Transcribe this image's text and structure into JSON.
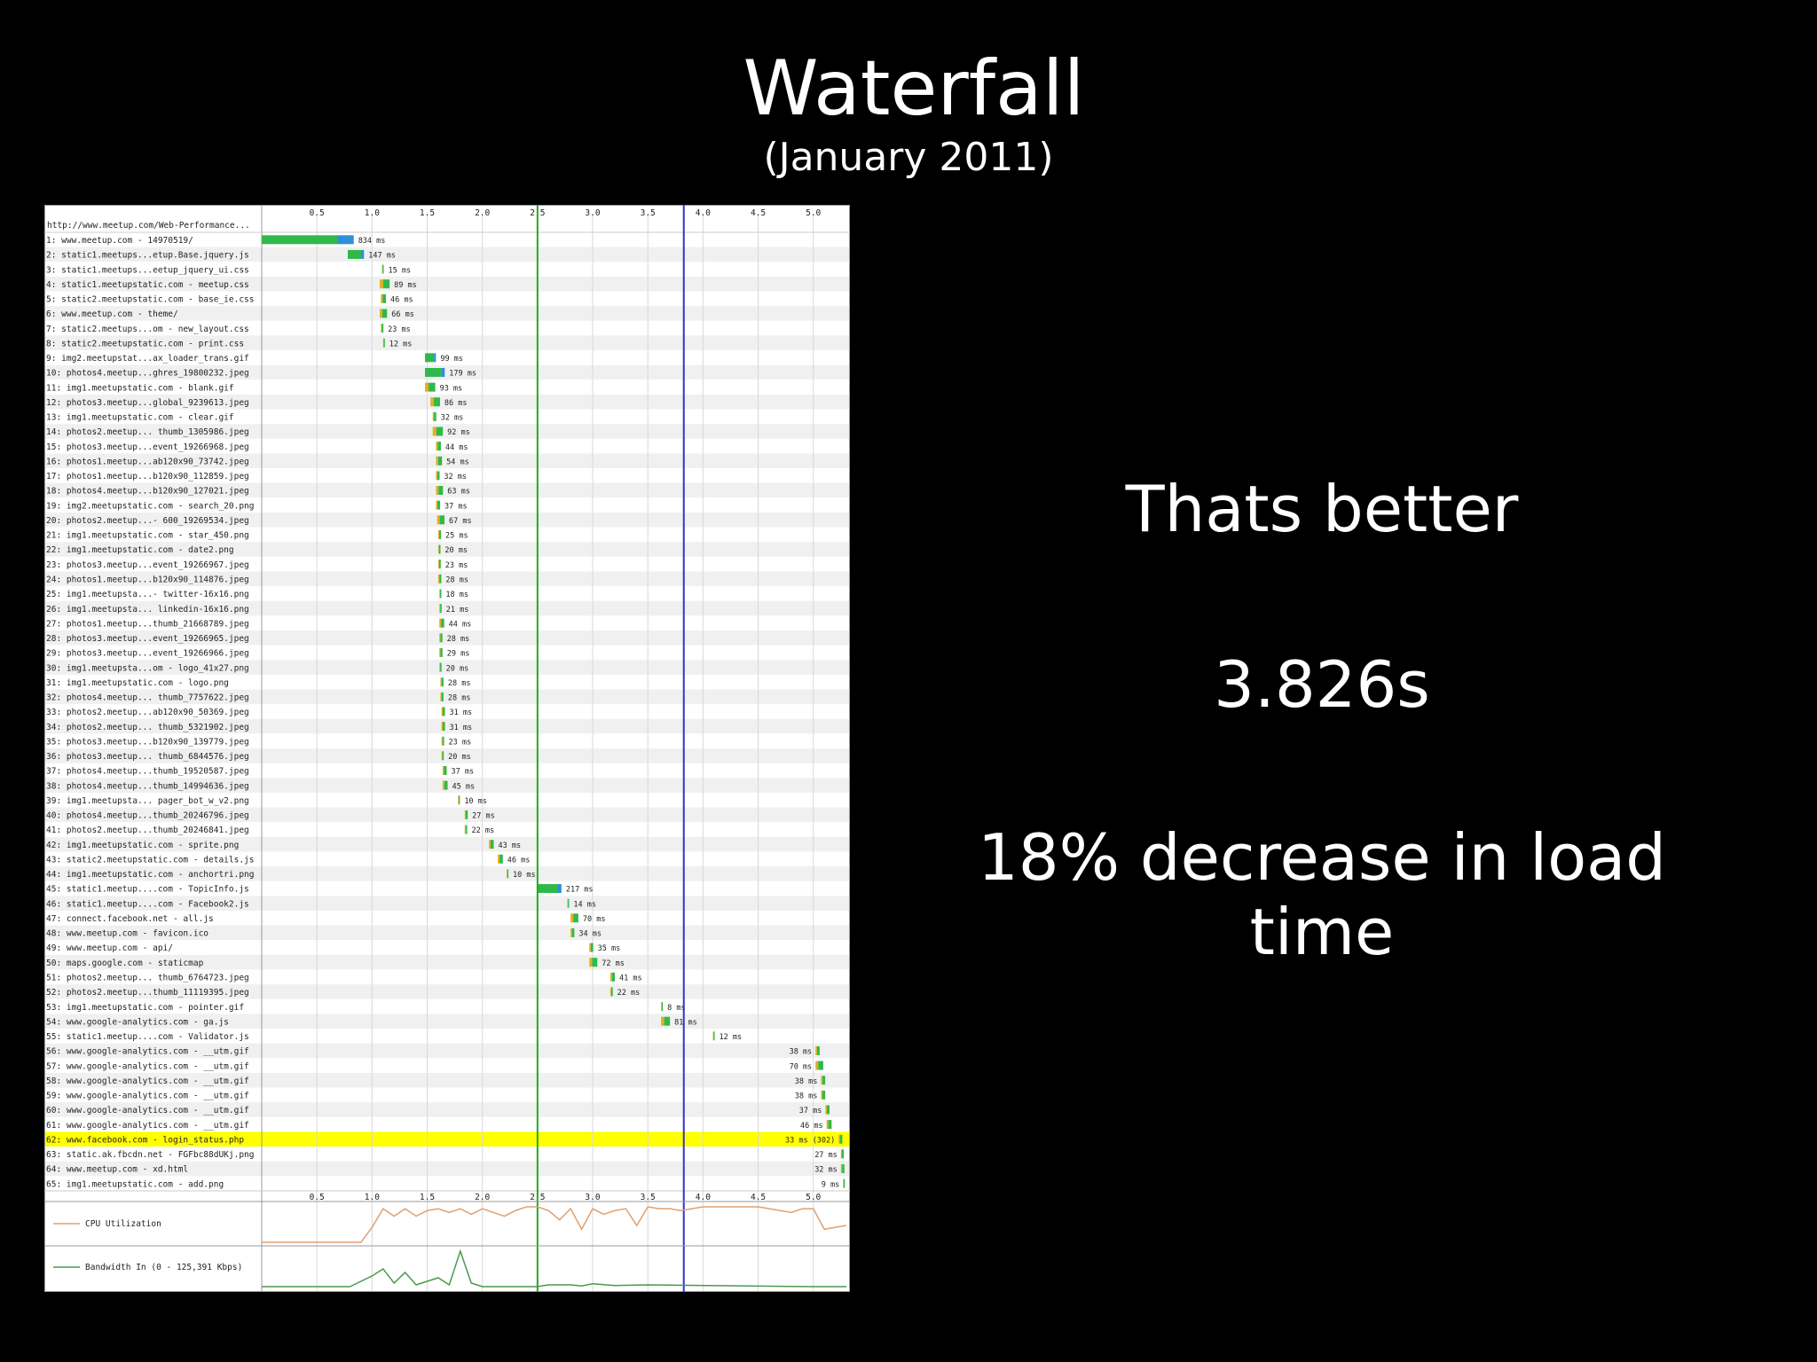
{
  "slide": {
    "title": "Waterfall",
    "subtitle": "(January 2011)",
    "notes": [
      "Thats better",
      "3.826s",
      "18% decrease in load time"
    ]
  },
  "colors": {
    "background": "#000000",
    "bar_primary": "#2fb94a",
    "bar_secondary": "#2f8fd8",
    "bar_tertiary": "#e0b020",
    "highlight_row": "#ffff00",
    "start_render_line": "#22aa22",
    "document_complete_line": "#3333cc",
    "cpu_line": "#e0a070",
    "bandwidth_line": "#4a9a4a"
  },
  "chart_data": {
    "type": "waterfall",
    "title": "http://www.meetup.com/Web-Performance...",
    "x_unit": "s",
    "xlim": [
      0,
      5.3
    ],
    "x_ticks": [
      "0.5",
      "1.0",
      "1.5",
      "2.0",
      "2.5",
      "3.0",
      "3.5",
      "4.0",
      "4.5",
      "5.0"
    ],
    "markers": [
      {
        "name": "start-render",
        "value": 2.5
      },
      {
        "name": "document-complete",
        "value": 3.826
      }
    ],
    "highlight_row": 62,
    "requests": [
      {
        "label": "1: www.meetup.com - 14970519/",
        "start": 0,
        "ms": 834,
        "dur_label": "834 ms"
      },
      {
        "label": "2: static1.meetups...etup.Base.jquery.js",
        "start": 0.78,
        "ms": 147,
        "dur_label": "147 ms"
      },
      {
        "label": "3: static1.meetups...eetup_jquery_ui.css",
        "start": 1.09,
        "ms": 15,
        "dur_label": "15 ms"
      },
      {
        "label": "4: static1.meetupstatic.com - meetup.css",
        "start": 1.07,
        "ms": 89,
        "dur_label": "89 ms"
      },
      {
        "label": "5: static2.meetupstatic.com - base_ie.css",
        "start": 1.08,
        "ms": 46,
        "dur_label": "46 ms"
      },
      {
        "label": "6: www.meetup.com - theme/",
        "start": 1.07,
        "ms": 66,
        "dur_label": "66 ms"
      },
      {
        "label": "7: static2.meetups...om - new_layout.css",
        "start": 1.08,
        "ms": 23,
        "dur_label": "23 ms"
      },
      {
        "label": "8: static2.meetupstatic.com - print.css",
        "start": 1.1,
        "ms": 12,
        "dur_label": "12 ms"
      },
      {
        "label": "9: img2.meetupstat...ax_loader_trans.gif",
        "start": 1.48,
        "ms": 99,
        "dur_label": "99 ms"
      },
      {
        "label": "10: photos4.meetup...ghres_19800232.jpeg",
        "start": 1.48,
        "ms": 179,
        "dur_label": "179 ms"
      },
      {
        "label": "11: img1.meetupstatic.com - blank.gif",
        "start": 1.48,
        "ms": 93,
        "dur_label": "93 ms"
      },
      {
        "label": "12: photos3.meetup...global_9239613.jpeg",
        "start": 1.53,
        "ms": 86,
        "dur_label": "86 ms"
      },
      {
        "label": "13: img1.meetupstatic.com - clear.gif",
        "start": 1.55,
        "ms": 32,
        "dur_label": "32 ms"
      },
      {
        "label": "14: photos2.meetup... thumb_1305986.jpeg",
        "start": 1.55,
        "ms": 92,
        "dur_label": "92 ms"
      },
      {
        "label": "15: photos3.meetup...event_19266968.jpeg",
        "start": 1.58,
        "ms": 44,
        "dur_label": "44 ms"
      },
      {
        "label": "16: photos1.meetup...ab120x90_73742.jpeg",
        "start": 1.58,
        "ms": 54,
        "dur_label": "54 ms"
      },
      {
        "label": "17: photos1.meetup...b120x90_112859.jpeg",
        "start": 1.58,
        "ms": 32,
        "dur_label": "32 ms"
      },
      {
        "label": "18: photos4.meetup...b120x90_127021.jpeg",
        "start": 1.58,
        "ms": 63,
        "dur_label": "63 ms"
      },
      {
        "label": "19: img2.meetupstatic.com - search_20.png",
        "start": 1.58,
        "ms": 37,
        "dur_label": "37 ms"
      },
      {
        "label": "20: photos2.meetup...- 600_19269534.jpeg",
        "start": 1.59,
        "ms": 67,
        "dur_label": "67 ms"
      },
      {
        "label": "21: img1.meetupstatic.com - star_450.png",
        "start": 1.6,
        "ms": 25,
        "dur_label": "25 ms"
      },
      {
        "label": "22: img1.meetupstatic.com - date2.png",
        "start": 1.6,
        "ms": 20,
        "dur_label": "20 ms"
      },
      {
        "label": "23: photos3.meetup...event_19266967.jpeg",
        "start": 1.6,
        "ms": 23,
        "dur_label": "23 ms"
      },
      {
        "label": "24: photos1.meetup...b120x90_114876.jpeg",
        "start": 1.6,
        "ms": 28,
        "dur_label": "28 ms"
      },
      {
        "label": "25: img1.meetupsta...- twitter-16x16.png",
        "start": 1.61,
        "ms": 18,
        "dur_label": "18 ms"
      },
      {
        "label": "26: img1.meetupsta... linkedin-16x16.png",
        "start": 1.61,
        "ms": 21,
        "dur_label": "21 ms"
      },
      {
        "label": "27: photos1.meetup...thumb_21668789.jpeg",
        "start": 1.61,
        "ms": 44,
        "dur_label": "44 ms"
      },
      {
        "label": "28: photos3.meetup...event_19266965.jpeg",
        "start": 1.61,
        "ms": 28,
        "dur_label": "28 ms"
      },
      {
        "label": "29: photos3.meetup...event_19266966.jpeg",
        "start": 1.61,
        "ms": 29,
        "dur_label": "29 ms"
      },
      {
        "label": "30: img1.meetupsta...om - logo_41x27.png",
        "start": 1.61,
        "ms": 20,
        "dur_label": "20 ms"
      },
      {
        "label": "31: img1.meetupstatic.com - logo.png",
        "start": 1.62,
        "ms": 28,
        "dur_label": "28 ms"
      },
      {
        "label": "32: photos4.meetup... thumb_7757622.jpeg",
        "start": 1.62,
        "ms": 28,
        "dur_label": "28 ms"
      },
      {
        "label": "33: photos2.meetup...ab120x90_50369.jpeg",
        "start": 1.63,
        "ms": 31,
        "dur_label": "31 ms"
      },
      {
        "label": "34: photos2.meetup... thumb_5321902.jpeg",
        "start": 1.63,
        "ms": 31,
        "dur_label": "31 ms"
      },
      {
        "label": "35: photos3.meetup...b120x90_139779.jpeg",
        "start": 1.63,
        "ms": 23,
        "dur_label": "23 ms"
      },
      {
        "label": "36: photos3.meetup... thumb_6844576.jpeg",
        "start": 1.63,
        "ms": 20,
        "dur_label": "20 ms"
      },
      {
        "label": "37: photos4.meetup...thumb_19520587.jpeg",
        "start": 1.64,
        "ms": 37,
        "dur_label": "37 ms"
      },
      {
        "label": "38: photos4.meetup...thumb_14994636.jpeg",
        "start": 1.64,
        "ms": 45,
        "dur_label": "45 ms"
      },
      {
        "label": "39: img1.meetupsta... pager_bot_w_v2.png",
        "start": 1.78,
        "ms": 10,
        "dur_label": "10 ms"
      },
      {
        "label": "40: photos4.meetup...thumb_20246796.jpeg",
        "start": 1.84,
        "ms": 27,
        "dur_label": "27 ms"
      },
      {
        "label": "41: photos2.meetup...thumb_20246841.jpeg",
        "start": 1.84,
        "ms": 22,
        "dur_label": "22 ms"
      },
      {
        "label": "42: img1.meetupstatic.com - sprite.png",
        "start": 2.06,
        "ms": 43,
        "dur_label": "43 ms"
      },
      {
        "label": "43: static2.meetupstatic.com - details.js",
        "start": 2.14,
        "ms": 46,
        "dur_label": "46 ms"
      },
      {
        "label": "44: img1.meetupstatic.com - anchortri.png",
        "start": 2.22,
        "ms": 10,
        "dur_label": "10 ms"
      },
      {
        "label": "45: static1.meetup....com - TopicInfo.js",
        "start": 2.5,
        "ms": 217,
        "dur_label": "217 ms"
      },
      {
        "label": "46: static1.meetup....com - Facebook2.js",
        "start": 2.77,
        "ms": 14,
        "dur_label": "14 ms"
      },
      {
        "label": "47: connect.facebook.net - all.js",
        "start": 2.8,
        "ms": 70,
        "dur_label": "70 ms"
      },
      {
        "label": "48: www.meetup.com - favicon.ico",
        "start": 2.8,
        "ms": 34,
        "dur_label": "34 ms"
      },
      {
        "label": "49: www.meetup.com - api/",
        "start": 2.97,
        "ms": 35,
        "dur_label": "35 ms"
      },
      {
        "label": "50: maps.google.com - staticmap",
        "start": 2.97,
        "ms": 72,
        "dur_label": "72 ms"
      },
      {
        "label": "51: photos2.meetup... thumb_6764723.jpeg",
        "start": 3.16,
        "ms": 41,
        "dur_label": "41 ms"
      },
      {
        "label": "52: photos2.meetup...thumb_11119395.jpeg",
        "start": 3.16,
        "ms": 22,
        "dur_label": "22 ms"
      },
      {
        "label": "53: img1.meetupstatic.com - pointer.gif",
        "start": 3.62,
        "ms": 8,
        "dur_label": "8 ms"
      },
      {
        "label": "54: www.google-analytics.com - ga.js",
        "start": 3.62,
        "ms": 81,
        "dur_label": "81 ms"
      },
      {
        "label": "55: static1.meetup....com - Validator.js",
        "start": 4.09,
        "ms": 12,
        "dur_label": "12 ms"
      },
      {
        "label": "56: www.google-analytics.com - __utm.gif",
        "start": 5.02,
        "ms": 38,
        "dur_label": "38 ms"
      },
      {
        "label": "57: www.google-analytics.com - __utm.gif",
        "start": 5.02,
        "ms": 70,
        "dur_label": "70 ms"
      },
      {
        "label": "58: www.google-analytics.com - __utm.gif",
        "start": 5.07,
        "ms": 38,
        "dur_label": "38 ms"
      },
      {
        "label": "59: www.google-analytics.com - __utm.gif",
        "start": 5.07,
        "ms": 38,
        "dur_label": "38 ms"
      },
      {
        "label": "60: www.google-analytics.com - __utm.gif",
        "start": 5.11,
        "ms": 37,
        "dur_label": "37 ms"
      },
      {
        "label": "61: www.google-analytics.com - __utm.gif",
        "start": 5.12,
        "ms": 46,
        "dur_label": "46 ms"
      },
      {
        "label": "62: www.facebook.com - login_status.php",
        "start": 5.23,
        "ms": 33,
        "dur_label": "33 ms (302)"
      },
      {
        "label": "63: static.ak.fbcdn.net - FGFbc88dUKj.png",
        "start": 5.25,
        "ms": 27,
        "dur_label": "27 ms"
      },
      {
        "label": "64: www.meetup.com - xd.html",
        "start": 5.25,
        "ms": 32,
        "dur_label": "32 ms"
      },
      {
        "label": "65: img1.meetupstatic.com - add.png",
        "start": 5.27,
        "ms": 9,
        "dur_label": "9 ms"
      }
    ],
    "cpu": {
      "label": "CPU Utilization",
      "x": [
        0,
        0.5,
        0.9,
        1.0,
        1.1,
        1.2,
        1.3,
        1.4,
        1.5,
        1.6,
        1.7,
        1.8,
        1.9,
        2.0,
        2.1,
        2.2,
        2.3,
        2.4,
        2.5,
        2.6,
        2.7,
        2.8,
        2.9,
        3.0,
        3.1,
        3.2,
        3.3,
        3.4,
        3.5,
        3.6,
        3.7,
        3.8,
        3.9,
        4.0,
        4.5,
        4.6,
        4.8,
        4.9,
        5.0,
        5.1,
        5.3
      ],
      "values": [
        0,
        0,
        0,
        40,
        90,
        70,
        90,
        70,
        85,
        90,
        80,
        90,
        75,
        90,
        80,
        70,
        85,
        95,
        95,
        85,
        60,
        90,
        35,
        90,
        75,
        85,
        90,
        45,
        95,
        90,
        90,
        85,
        90,
        95,
        95,
        90,
        80,
        90,
        90,
        35,
        45
      ]
    },
    "bandwidth": {
      "label": "Bandwidth In (0 - 125,391 Kbps)",
      "x": [
        0,
        0.8,
        0.9,
        1.0,
        1.1,
        1.2,
        1.3,
        1.4,
        1.5,
        1.6,
        1.7,
        1.8,
        1.9,
        2.0,
        2.5,
        2.6,
        2.8,
        2.9,
        3.0,
        3.2,
        3.5,
        5.0,
        5.3
      ],
      "values": [
        0,
        0,
        15,
        30,
        50,
        10,
        40,
        5,
        15,
        25,
        5,
        100,
        10,
        0,
        0,
        5,
        5,
        2,
        8,
        3,
        5,
        0,
        0
      ]
    }
  }
}
